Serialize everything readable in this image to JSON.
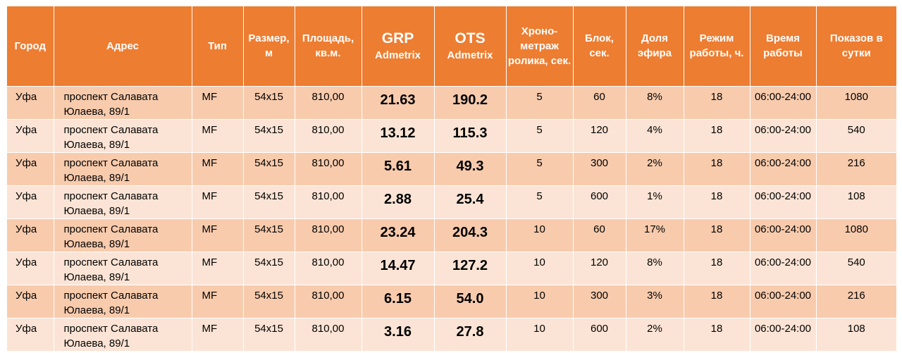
{
  "headers": {
    "city": "Город",
    "address": "Адрес",
    "type": "Тип",
    "size": "Размер, м",
    "area": "Площадь, кв.м.",
    "grp_title": "GRP",
    "grp_sub": "Admetrix",
    "ots_title": "OTS",
    "ots_sub": "Admetrix",
    "duration": "Хроно-метраж ролика, сек.",
    "block": "Блок, сек.",
    "share": "Доля эфира",
    "mode": "Режим работы, ч.",
    "hours": "Время работы",
    "shows": "Показов в сутки"
  },
  "rows": [
    {
      "city": "Уфа",
      "address": "проспект Салавата Юлаева, 89/1",
      "type": "MF",
      "size": "54x15",
      "area": "810,00",
      "grp": "21.63",
      "ots": "190.2",
      "duration": "5",
      "block": "60",
      "share": "8%",
      "mode": "18",
      "hours": "06:00-24:00",
      "shows": "1080"
    },
    {
      "city": "Уфа",
      "address": "проспект Салавата Юлаева, 89/1",
      "type": "MF",
      "size": "54x15",
      "area": "810,00",
      "grp": "13.12",
      "ots": "115.3",
      "duration": "5",
      "block": "120",
      "share": "4%",
      "mode": "18",
      "hours": "06:00-24:00",
      "shows": "540"
    },
    {
      "city": "Уфа",
      "address": "проспект Салавата Юлаева, 89/1",
      "type": "MF",
      "size": "54x15",
      "area": "810,00",
      "grp": "5.61",
      "ots": "49.3",
      "duration": "5",
      "block": "300",
      "share": "2%",
      "mode": "18",
      "hours": "06:00-24:00",
      "shows": "216"
    },
    {
      "city": "Уфа",
      "address": "проспект Салавата Юлаева, 89/1",
      "type": "MF",
      "size": "54x15",
      "area": "810,00",
      "grp": "2.88",
      "ots": "25.4",
      "duration": "5",
      "block": "600",
      "share": "1%",
      "mode": "18",
      "hours": "06:00-24:00",
      "shows": "108"
    },
    {
      "city": "Уфа",
      "address": "проспект Салавата Юлаева, 89/1",
      "type": "MF",
      "size": "54x15",
      "area": "810,00",
      "grp": "23.24",
      "ots": "204.3",
      "duration": "10",
      "block": "60",
      "share": "17%",
      "mode": "18",
      "hours": "06:00-24:00",
      "shows": "1080"
    },
    {
      "city": "Уфа",
      "address": "проспект Салавата Юлаева, 89/1",
      "type": "MF",
      "size": "54x15",
      "area": "810,00",
      "grp": "14.47",
      "ots": "127.2",
      "duration": "10",
      "block": "120",
      "share": "8%",
      "mode": "18",
      "hours": "06:00-24:00",
      "shows": "540"
    },
    {
      "city": "Уфа",
      "address": "проспект Салавата Юлаева, 89/1",
      "type": "MF",
      "size": "54x15",
      "area": "810,00",
      "grp": "6.15",
      "ots": "54.0",
      "duration": "10",
      "block": "300",
      "share": "3%",
      "mode": "18",
      "hours": "06:00-24:00",
      "shows": "216"
    },
    {
      "city": "Уфа",
      "address": "проспект Салавата Юлаева, 89/1",
      "type": "MF",
      "size": "54x15",
      "area": "810,00",
      "grp": "3.16",
      "ots": "27.8",
      "duration": "10",
      "block": "600",
      "share": "2%",
      "mode": "18",
      "hours": "06:00-24:00",
      "shows": "108"
    }
  ],
  "colors": {
    "header_bg": "#ed7d31",
    "row_odd": "#f8cbad",
    "row_even": "#fbe4d5"
  }
}
